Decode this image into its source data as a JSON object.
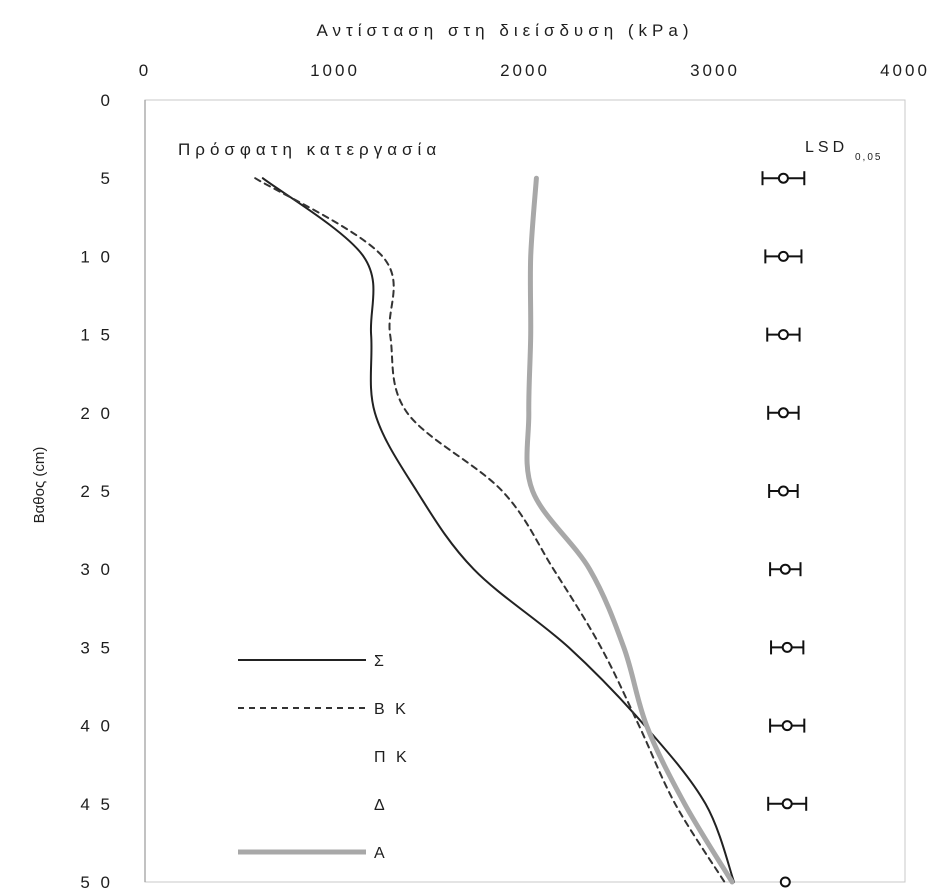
{
  "chart_data": {
    "type": "line",
    "title": "Αντίσταση στη διείσδυση (kPa)",
    "subtitle": "Πρόσφατη κατεργασία",
    "xlabel": "Αντίσταση στη διείσδυση (kPa)",
    "ylabel": "Βαθος (cm)",
    "x_axis_position": "top",
    "y_axis_inverted": true,
    "xlim": [
      0,
      4000
    ],
    "ylim": [
      0,
      50
    ],
    "x_ticks": [
      "0",
      "1000",
      "2000",
      "3000",
      "4000"
    ],
    "y_ticks": [
      "0",
      "5",
      "10",
      "15",
      "20",
      "25",
      "30",
      "35",
      "40",
      "45",
      "50"
    ],
    "grid": false,
    "legend_position": "bottom-left",
    "depth": [
      5,
      10,
      15,
      20,
      25,
      30,
      35,
      40,
      45,
      50
    ],
    "series": [
      {
        "name": "Σ",
        "style": "solid",
        "color": "#222222",
        "values": [
          620,
          1150,
          1190,
          1210,
          1430,
          1730,
          2230,
          2630,
          2950,
          3100
        ]
      },
      {
        "name": "Β Κ",
        "style": "dashed",
        "color": "#333333",
        "values": [
          580,
          1250,
          1290,
          1380,
          1880,
          2150,
          2400,
          2600,
          2790,
          3050
        ]
      },
      {
        "name": "Π Κ",
        "style": "none",
        "color": "#999999",
        "values": []
      },
      {
        "name": "Δ",
        "style": "none",
        "color": "#999999",
        "values": []
      },
      {
        "name": "Α",
        "style": "thick",
        "color": "#a8a8a8",
        "values": [
          2060,
          2030,
          2030,
          2020,
          2040,
          2340,
          2520,
          2640,
          2840,
          3090
        ]
      }
    ],
    "lsd": {
      "label": "LSD",
      "subscript": "0,05",
      "items": [
        {
          "depth": 5,
          "center": 3360,
          "half_width": 110
        },
        {
          "depth": 10,
          "center": 3360,
          "half_width": 95
        },
        {
          "depth": 15,
          "center": 3360,
          "half_width": 85
        },
        {
          "depth": 20,
          "center": 3360,
          "half_width": 80
        },
        {
          "depth": 25,
          "center": 3360,
          "half_width": 75
        },
        {
          "depth": 30,
          "center": 3370,
          "half_width": 80
        },
        {
          "depth": 35,
          "center": 3380,
          "half_width": 85
        },
        {
          "depth": 40,
          "center": 3380,
          "half_width": 90
        },
        {
          "depth": 45,
          "center": 3380,
          "half_width": 100
        },
        {
          "depth": 50,
          "center": 3370,
          "half_width": 0
        }
      ]
    }
  }
}
